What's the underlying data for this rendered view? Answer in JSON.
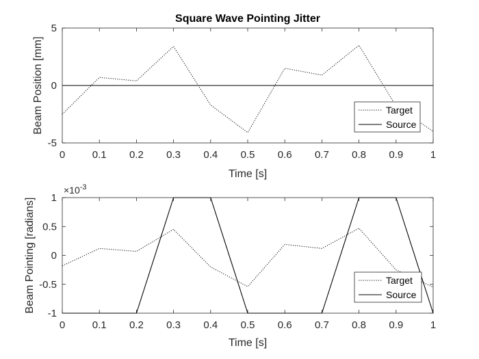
{
  "figure_title": "Square Wave Pointing Jitter",
  "chart_data": [
    {
      "type": "line",
      "title": "Square Wave Pointing Jitter",
      "xlabel": "Time [s]",
      "ylabel": "Beam Position [mm]",
      "xlim": [
        0,
        1
      ],
      "ylim": [
        -5,
        5
      ],
      "xticks": [
        0,
        0.1,
        0.2,
        0.3,
        0.4,
        0.5,
        0.6,
        0.7,
        0.8,
        0.9,
        1
      ],
      "xtick_labels": [
        "0",
        "0.1",
        "0.2",
        "0.3",
        "0.4",
        "0.5",
        "0.6",
        "0.7",
        "0.8",
        "0.9",
        "1"
      ],
      "yticks": [
        -5,
        0,
        5
      ],
      "ytick_labels": [
        "-5",
        "0",
        "5"
      ],
      "grid": false,
      "legend_position": "bottom-right",
      "series": [
        {
          "name": "Target",
          "style": "dotted",
          "color": "#000000",
          "x": [
            0,
            0.1,
            0.2,
            0.3,
            0.4,
            0.5,
            0.6,
            0.7,
            0.8,
            0.9,
            1
          ],
          "y": [
            -2.5,
            0.7,
            0.4,
            3.4,
            -1.7,
            -4.1,
            1.5,
            0.9,
            3.5,
            -1.8,
            -4.0
          ]
        },
        {
          "name": "Source",
          "style": "solid",
          "color": "#000000",
          "x": [
            0,
            1
          ],
          "y": [
            0,
            0
          ]
        }
      ]
    },
    {
      "type": "line",
      "title": "",
      "xlabel": "Time [s]",
      "ylabel": "Beam Pointing [radians]",
      "exponent_base": "×10",
      "exponent_power": "-3",
      "xlim": [
        0,
        1
      ],
      "ylim": [
        -1,
        1
      ],
      "xticks": [
        0,
        0.1,
        0.2,
        0.3,
        0.4,
        0.5,
        0.6,
        0.7,
        0.8,
        0.9,
        1
      ],
      "xtick_labels": [
        "0",
        "0.1",
        "0.2",
        "0.3",
        "0.4",
        "0.5",
        "0.6",
        "0.7",
        "0.8",
        "0.9",
        "1"
      ],
      "yticks": [
        -1,
        -0.5,
        0,
        0.5,
        1
      ],
      "ytick_labels": [
        "-1",
        "-0.5",
        "0",
        "0.5",
        "1"
      ],
      "grid": false,
      "legend_position": "bottom-right",
      "series": [
        {
          "name": "Target",
          "style": "dotted",
          "color": "#000000",
          "x": [
            0,
            0.1,
            0.2,
            0.3,
            0.4,
            0.5,
            0.6,
            0.7,
            0.8,
            0.9,
            1
          ],
          "y": [
            -0.18,
            0.12,
            0.07,
            0.45,
            -0.2,
            -0.54,
            0.19,
            0.12,
            0.47,
            -0.25,
            -0.55
          ]
        },
        {
          "name": "Source",
          "style": "solid",
          "color": "#000000",
          "x": [
            0,
            0.1,
            0.2,
            0.3,
            0.4,
            0.5,
            0.6,
            0.7,
            0.8,
            0.9,
            1
          ],
          "y": [
            -1,
            -1,
            -1,
            1,
            1,
            -1,
            -1,
            -1,
            1,
            1,
            -1
          ]
        }
      ]
    }
  ]
}
